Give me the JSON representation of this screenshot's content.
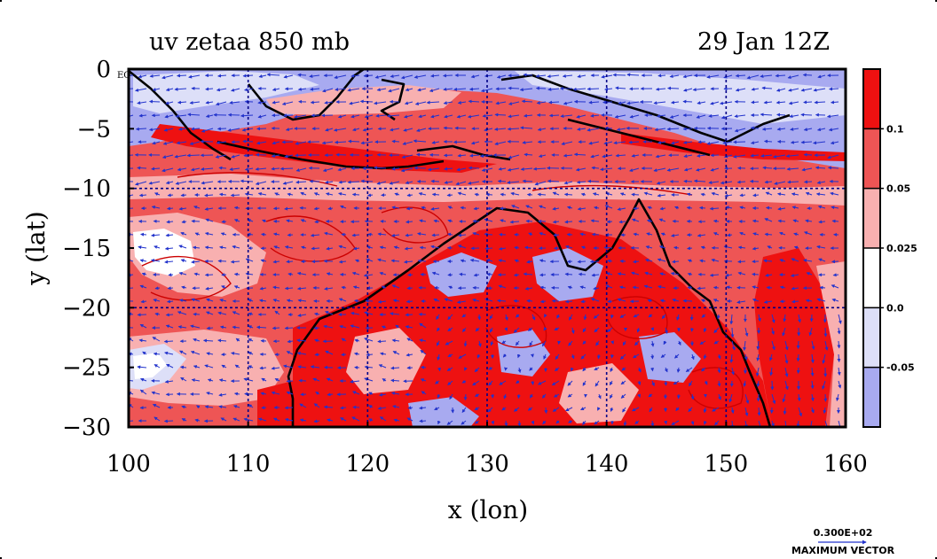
{
  "chart_data": {
    "type": "heatmap",
    "title_left": "uv zetaa 850 mb",
    "title_right": "29 Jan 12Z",
    "xlabel": "x (lon)",
    "ylabel": "y (lat)",
    "xlim": [
      100,
      160
    ],
    "ylim": [
      -30,
      0
    ],
    "x_ticks": [
      100,
      110,
      120,
      130,
      140,
      150,
      160
    ],
    "x_tick_labels": [
      "100",
      "110",
      "120",
      "130",
      "140",
      "150",
      "160"
    ],
    "y_ticks": [
      0,
      -5,
      -10,
      -15,
      -20,
      -25,
      -30
    ],
    "y_tick_labels": [
      "0",
      "−5",
      "−10",
      "−15",
      "−20",
      "−25",
      "−30"
    ],
    "eq_label": "EQ",
    "grid_lon": [
      110,
      120,
      130,
      140,
      150
    ],
    "grid_lat": [
      -10,
      -20
    ],
    "colorbar": {
      "boundary_values": [
        0.1,
        0.05,
        0.025,
        0.0,
        -0.05
      ],
      "boundary_labels": [
        "0.1",
        "0.05",
        "0.025",
        "0.0",
        "-0.05"
      ],
      "colors": [
        "#ee1111",
        "#ee5555",
        "#f8b0b0",
        "#ffffff",
        "#dddff8",
        "#a8aaf0"
      ]
    },
    "vector_legend": {
      "value_label": "0.300E+02",
      "caption": "MAXIMUM VECTOR"
    },
    "colors": {
      "contour_line": "#cc0000",
      "coastline": "#000000",
      "wind_vectors": "#2233cc",
      "gridline": "#000088"
    }
  }
}
